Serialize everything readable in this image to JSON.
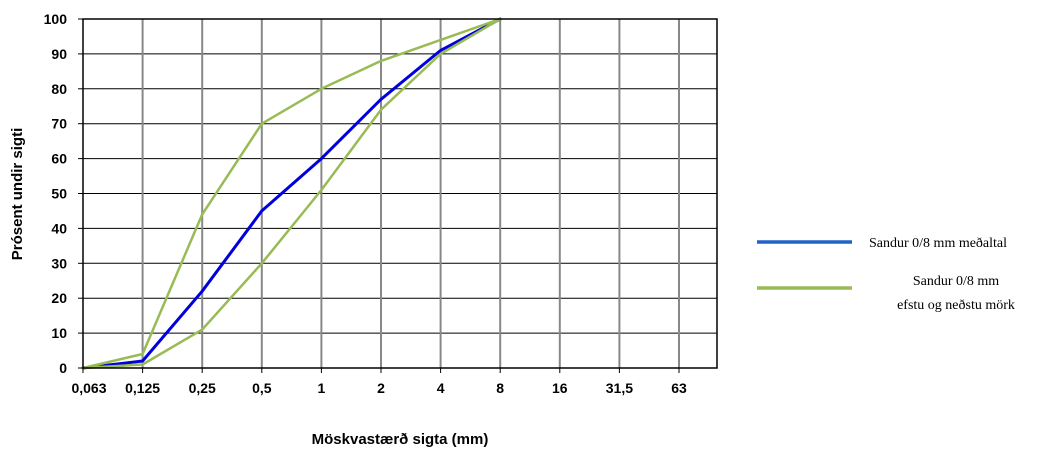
{
  "chart_data": {
    "type": "line",
    "xlabel": "Möskvastærð sigta (mm)",
    "ylabel": "Prósent undir sigti",
    "ylim": [
      0,
      100
    ],
    "x_scale": "categorical",
    "grid": true,
    "legend_position": "right",
    "categories": [
      "0,063",
      "0,125",
      "0,25",
      "0,5",
      "1",
      "2",
      "4",
      "8",
      "16",
      "31,5",
      "63"
    ],
    "y_ticks": [
      "0",
      "10",
      "20",
      "30",
      "40",
      "50",
      "60",
      "70",
      "80",
      "90",
      "100"
    ],
    "series": [
      {
        "name": "Sandur 0/8 mm meðaltal",
        "color": "#0000dd",
        "values": [
          0,
          2,
          22,
          45,
          60,
          77,
          91,
          100,
          null,
          null,
          null
        ]
      },
      {
        "color": "#99bb55",
        "values": [
          0,
          4,
          44,
          70,
          80,
          88,
          94,
          100,
          null,
          null,
          null
        ]
      },
      {
        "color": "#99bb55",
        "values": [
          0,
          1,
          11,
          30,
          51,
          74,
          90,
          100,
          null,
          null,
          null
        ]
      }
    ],
    "legend": [
      {
        "lines": [
          "Sandur 0/8 mm meðaltal"
        ],
        "color": "#1f63c6"
      },
      {
        "lines": [
          "Sandur 0/8 mm",
          "efstu og neðstu mörk"
        ],
        "color": "#99bb55"
      }
    ]
  }
}
